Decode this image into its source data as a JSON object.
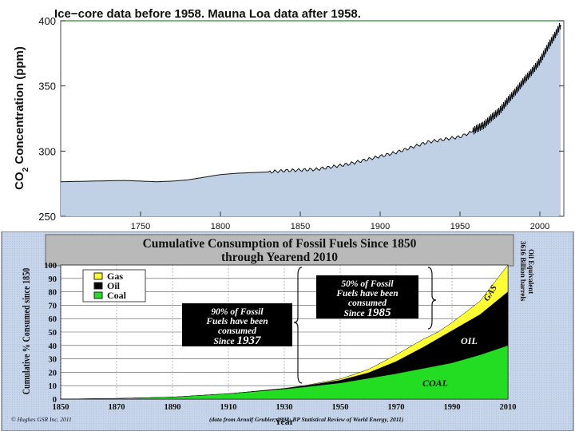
{
  "chart_data": [
    {
      "type": "area",
      "title": "Ice−core data before 1958. Mauna Loa data after 1958.",
      "ylabel_main": "CO",
      "ylabel_sub": "2",
      "ylabel_rest": " Concentration (ppm)",
      "xlabel": "",
      "xlim": [
        1700,
        2015
      ],
      "ylim": [
        250,
        400
      ],
      "x_ticks": [
        1750,
        1800,
        1850,
        1900,
        1950,
        2000
      ],
      "y_ticks": [
        250,
        300,
        350,
        400
      ],
      "reference_line": 400,
      "series": [
        {
          "name": "CO2",
          "x": [
            1700,
            1720,
            1740,
            1750,
            1760,
            1770,
            1780,
            1790,
            1800,
            1810,
            1820,
            1830,
            1840,
            1850,
            1860,
            1870,
            1880,
            1890,
            1900,
            1910,
            1920,
            1930,
            1940,
            1950,
            1958,
            1960,
            1965,
            1970,
            1975,
            1980,
            1985,
            1990,
            1995,
            2000,
            2005,
            2010,
            2013
          ],
          "y": [
            276.5,
            277,
            277.5,
            277,
            276.5,
            277,
            278,
            280,
            282,
            283,
            283.5,
            284,
            285,
            285.5,
            286,
            288,
            290,
            293,
            296,
            299,
            303,
            307,
            309,
            311,
            315,
            317,
            320,
            326,
            331,
            339,
            346,
            354,
            361,
            369,
            380,
            390,
            397
          ]
        }
      ]
    },
    {
      "type": "area",
      "title_line1": "Cumulative Consumption of Fossil Fuels Since 1850",
      "title_line2": "through Yearend 2010",
      "ylabel": "Cumulative % Consumed since 1850",
      "xlabel": "Year",
      "xlim": [
        1850,
        2010
      ],
      "ylim": [
        0,
        100
      ],
      "x_ticks": [
        1850,
        1870,
        1890,
        1910,
        1930,
        1950,
        1970,
        1990,
        2010
      ],
      "y_ticks": [
        0,
        10,
        20,
        30,
        40,
        50,
        60,
        70,
        80,
        90,
        100
      ],
      "legend": [
        "Gas",
        "Oil",
        "Coal"
      ],
      "legend_position": "top-left",
      "x": [
        1850,
        1870,
        1890,
        1910,
        1930,
        1937,
        1950,
        1960,
        1970,
        1980,
        1985,
        1990,
        2000,
        2010
      ],
      "series": [
        {
          "name": "Coal",
          "cumulative": [
            0,
            0.5,
            1.5,
            4,
            7.5,
            9,
            12,
            15.5,
            19,
            23,
            25,
            27,
            33,
            40
          ]
        },
        {
          "name": "Oil",
          "cumulative": [
            0,
            0.5,
            1.5,
            4,
            7.8,
            9.7,
            14,
            19.5,
            28,
            39,
            45,
            51,
            63,
            80
          ]
        },
        {
          "name": "Gas",
          "cumulative": [
            0,
            0.5,
            1.5,
            4,
            8,
            10,
            15,
            22,
            33,
            45,
            50,
            57,
            73,
            100
          ]
        }
      ],
      "annotations": {
        "box1_line1": "90% of Fossil",
        "box1_line2": "Fuels have been",
        "box1_line3": "consumed",
        "box1_line4_prefix": "Since ",
        "box1_line4_year": "1937",
        "box2_line1": "50% of Fossil",
        "box2_line2": "Fuels have been",
        "box2_line3": "consumed",
        "box2_line4_prefix": "Since ",
        "box2_line4_year": "1985",
        "gas_label": "GAS",
        "oil_label": "OIL",
        "coal_label": "COAL",
        "side_note_line1": "3616 Billion barrels",
        "side_note_line2": "Oil Equivalent",
        "footer_left": "© Hughes GSR Inc, 2011",
        "footer_right": "(data from Arnulf Grubler, 1998; BP Statistical Review of World Energy, 2011)"
      }
    }
  ]
}
